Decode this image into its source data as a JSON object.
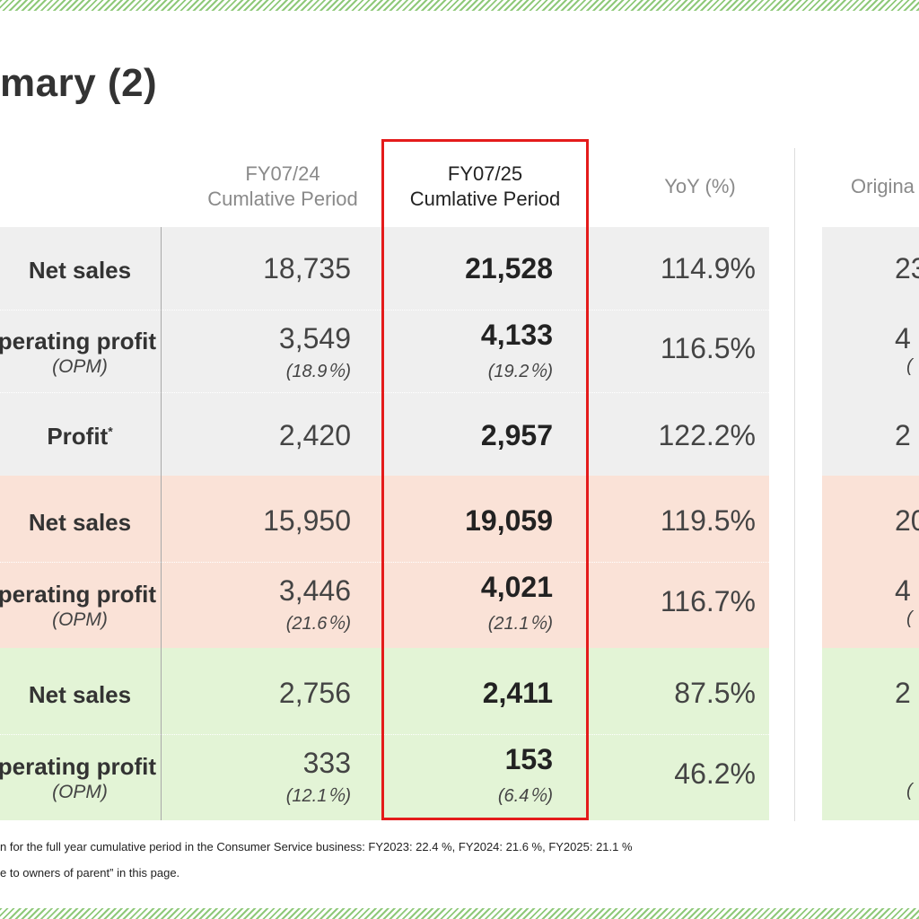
{
  "title": "mary (2)",
  "columns": {
    "prev_line1": "FY07/24",
    "prev_line2": "Cumlative Period",
    "cur_line1": "FY07/25",
    "cur_line2": "Cumlative Period",
    "yoy": "YoY (%)",
    "orig": "Origina"
  },
  "rows": [
    {
      "label": "Net sales",
      "prev": "18,735",
      "cur": "21,528",
      "yoy": "114.9%",
      "orig": "23"
    },
    {
      "label": "perating profit",
      "sublabel": "(OPM)",
      "prev": "3,549",
      "prev_sub": "(18.9％)",
      "cur": "4,133",
      "cur_sub": "(19.2％)",
      "yoy": "116.5%",
      "orig": "4",
      "orig_sub": "("
    },
    {
      "label": "Profit",
      "label_sup": "*",
      "prev": "2,420",
      "cur": "2,957",
      "yoy": "122.2%",
      "orig": "2"
    },
    {
      "label": "Net sales",
      "prev": "15,950",
      "cur": "19,059",
      "yoy": "119.5%",
      "orig": "20"
    },
    {
      "label": "perating profit",
      "sublabel": "(OPM)",
      "prev": "3,446",
      "prev_sub": "(21.6％)",
      "cur": "4,021",
      "cur_sub": "(21.1％)",
      "yoy": "116.7%",
      "orig": "4",
      "orig_sub": "("
    },
    {
      "label": "Net sales",
      "prev": "2,756",
      "cur": "2,411",
      "yoy": "87.5%",
      "orig": "2"
    },
    {
      "label": "perating profit",
      "sublabel": "(OPM)",
      "prev": "333",
      "prev_sub": "(12.1％)",
      "cur": "153",
      "cur_sub": "(6.4％)",
      "yoy": "46.2%",
      "orig": "",
      "orig_sub": "("
    }
  ],
  "footnotes": [
    "n for the full year cumulative period in the Consumer Service business: FY2023: 22.4 %, FY2024: 21.6 %, FY2025: 21.1 %",
    "e to owners of parent” in this page."
  ],
  "colors": {
    "highlight_border": "#e41b1b",
    "band_gray": "#efefef",
    "band_salmon": "#fae2d7",
    "band_green": "#e3f4d6",
    "stripe": "#8fc97a"
  }
}
